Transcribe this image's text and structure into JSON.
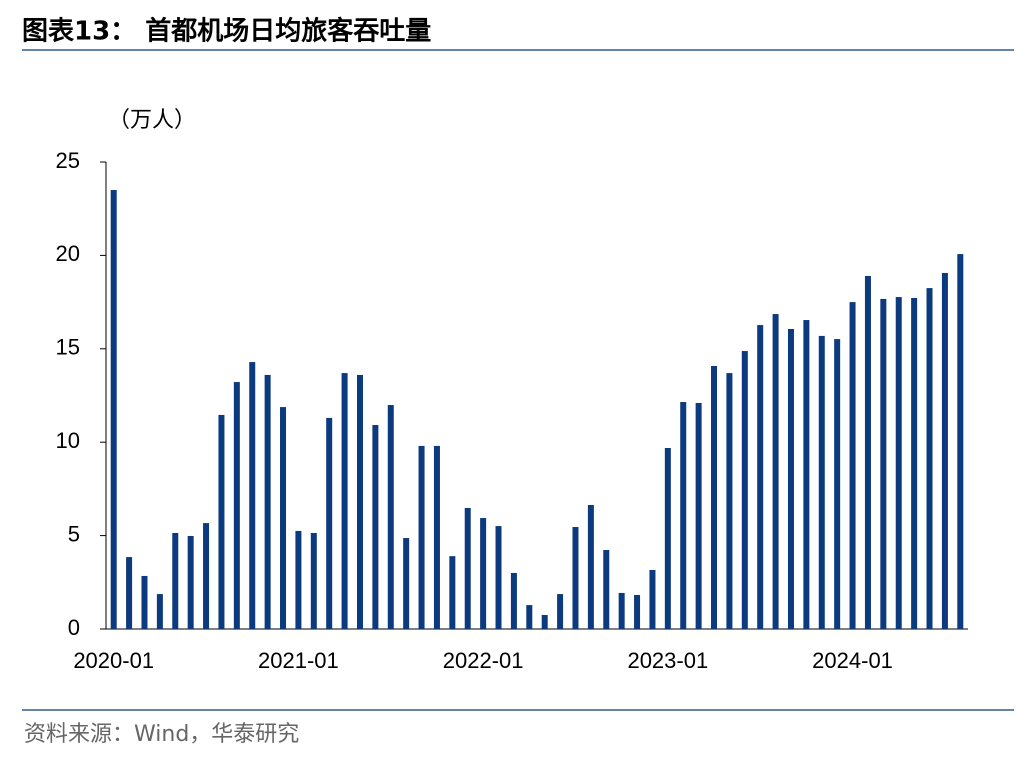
{
  "chart_data": {
    "type": "bar",
    "title": "图表13： 首都机场日均旅客吞吐量",
    "y_label": "（万人）",
    "source": "资料来源：Wind，华泰研究",
    "color": "#0b3a7e",
    "categories": [
      "2020-01",
      null,
      null,
      null,
      null,
      null,
      null,
      null,
      null,
      null,
      null,
      null,
      "2021-01",
      null,
      null,
      null,
      null,
      null,
      null,
      null,
      null,
      null,
      null,
      null,
      "2022-01",
      null,
      null,
      null,
      null,
      null,
      null,
      null,
      null,
      null,
      null,
      null,
      "2023-01",
      null,
      null,
      null,
      null,
      null,
      null,
      null,
      null,
      null,
      null,
      null,
      "2024-01",
      null,
      null,
      null,
      null,
      null,
      null,
      null
    ],
    "values": [
      23.5,
      3.85,
      2.84,
      1.87,
      5.14,
      4.98,
      5.67,
      11.46,
      13.22,
      14.29,
      13.6,
      11.88,
      5.25,
      5.14,
      11.3,
      13.7,
      13.6,
      10.92,
      11.99,
      4.87,
      9.8,
      9.8,
      3.9,
      6.48,
      5.94,
      5.51,
      3.0,
      1.28,
      0.75,
      1.87,
      5.46,
      6.64,
      4.23,
      1.93,
      1.82,
      3.16,
      9.69,
      12.15,
      12.1,
      14.08,
      13.7,
      14.88,
      16.27,
      16.86,
      16.06,
      16.54,
      15.69,
      15.52,
      17.5,
      18.9,
      17.67,
      17.77,
      17.72,
      18.25,
      19.06,
      20.07
    ],
    "ylim": [
      0,
      25
    ],
    "yticks": [
      0,
      5,
      10,
      15,
      20,
      25
    ],
    "grid": false
  }
}
